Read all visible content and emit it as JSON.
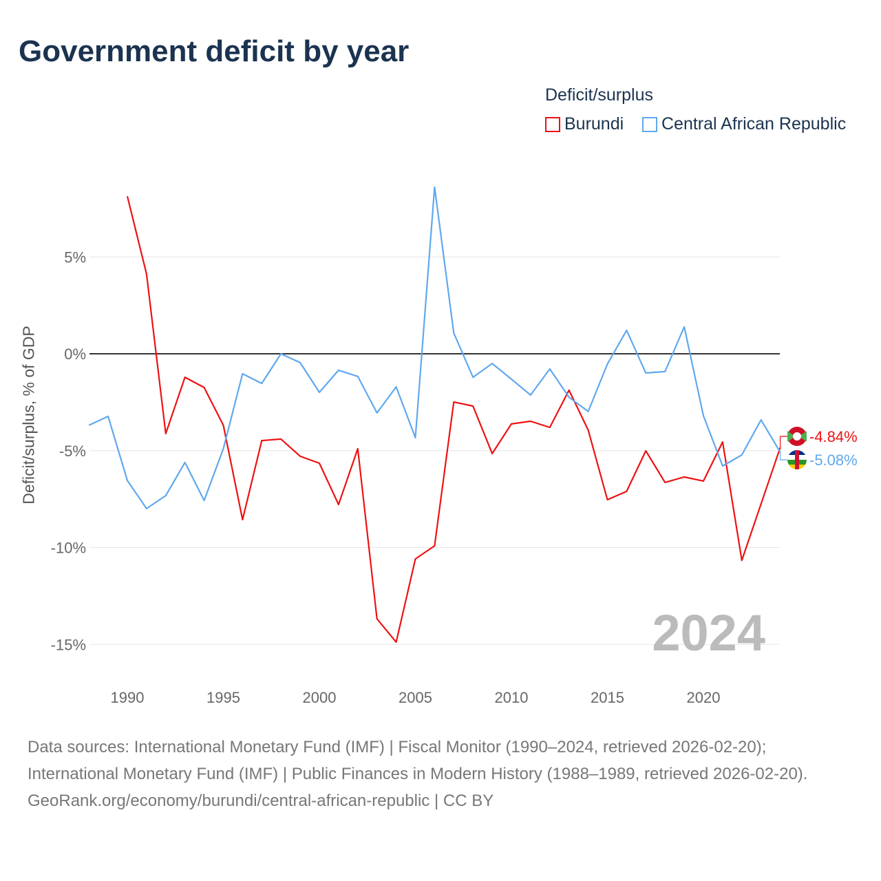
{
  "title": "Government deficit by year",
  "legend": {
    "title": "Deficit/surplus",
    "items": [
      {
        "label": "Burundi",
        "color": "#ee1111"
      },
      {
        "label": "Central African Republic",
        "color": "#5fa8ee"
      }
    ]
  },
  "watermark_year": "2024",
  "footer": {
    "sources": "Data sources: International Monetary Fund (IMF) | Fiscal Monitor (1990–2024, retrieved 2026-02-20); International Monetary Fund (IMF) | Public Finances in Modern History (1988–1989, retrieved 2026-02-20).",
    "link": "GeoRank.org/economy/burundi/central-african-republic | CC BY"
  },
  "chart_data": {
    "type": "line",
    "title": "Government deficit by year",
    "xlabel": "",
    "ylabel": "Deficit/surplus, % of GDP",
    "xlim": [
      1988,
      2024
    ],
    "ylim": [
      -17,
      10
    ],
    "xticks": [
      1990,
      1995,
      2000,
      2005,
      2010,
      2015,
      2020
    ],
    "yticks": [
      {
        "v": 5,
        "label": "5%"
      },
      {
        "v": 0,
        "label": "0%"
      },
      {
        "v": -5,
        "label": "-5%"
      },
      {
        "v": -10,
        "label": "-10%"
      },
      {
        "v": -15,
        "label": "-15%"
      }
    ],
    "series": [
      {
        "name": "Burundi",
        "color": "#ee1111",
        "end_label": "-4.84%",
        "flag": "burundi-flag",
        "x": [
          1990,
          1991,
          1992,
          1993,
          1994,
          1995,
          1996,
          1997,
          1998,
          1999,
          2000,
          2001,
          2002,
          2003,
          2004,
          2005,
          2006,
          2007,
          2008,
          2009,
          2010,
          2011,
          2012,
          2013,
          2014,
          2015,
          2016,
          2017,
          2018,
          2019,
          2020,
          2021,
          2022,
          2023,
          2024
        ],
        "values": [
          8.13,
          4.12,
          -4.12,
          -1.21,
          -1.74,
          -3.69,
          -8.56,
          -4.48,
          -4.4,
          -5.29,
          -5.65,
          -7.78,
          -4.9,
          -13.68,
          -14.88,
          -10.59,
          -9.91,
          -2.49,
          -2.7,
          -5.15,
          -3.62,
          -3.48,
          -3.8,
          -1.88,
          -3.94,
          -7.53,
          -7.1,
          -5.01,
          -6.64,
          -6.36,
          -6.57,
          -4.55,
          -10.66,
          -7.75,
          -4.84
        ]
      },
      {
        "name": "Central African Republic",
        "color": "#5fa8ee",
        "end_label": "-5.08%",
        "flag": "car-flag",
        "x": [
          1988,
          1989,
          1990,
          1991,
          1992,
          1993,
          1994,
          1995,
          1996,
          1997,
          1998,
          1999,
          2000,
          2001,
          2002,
          2003,
          2004,
          2005,
          2006,
          2007,
          2008,
          2009,
          2010,
          2011,
          2012,
          2013,
          2014,
          2015,
          2016,
          2017,
          2018,
          2019,
          2020,
          2021,
          2022,
          2023,
          2024
        ],
        "values": [
          -3.69,
          -3.23,
          -6.54,
          -7.99,
          -7.32,
          -5.61,
          -7.57,
          -4.9,
          -1.03,
          -1.53,
          0.0,
          -0.46,
          -1.99,
          -0.85,
          -1.17,
          -3.05,
          -1.71,
          -4.33,
          8.6,
          1.07,
          -1.21,
          -0.5,
          -1.31,
          -2.13,
          -0.78,
          -2.24,
          -2.98,
          -0.53,
          1.21,
          -0.99,
          -0.92,
          1.39,
          -3.2,
          -5.79,
          -5.22,
          -3.41,
          -5.08
        ]
      }
    ]
  }
}
